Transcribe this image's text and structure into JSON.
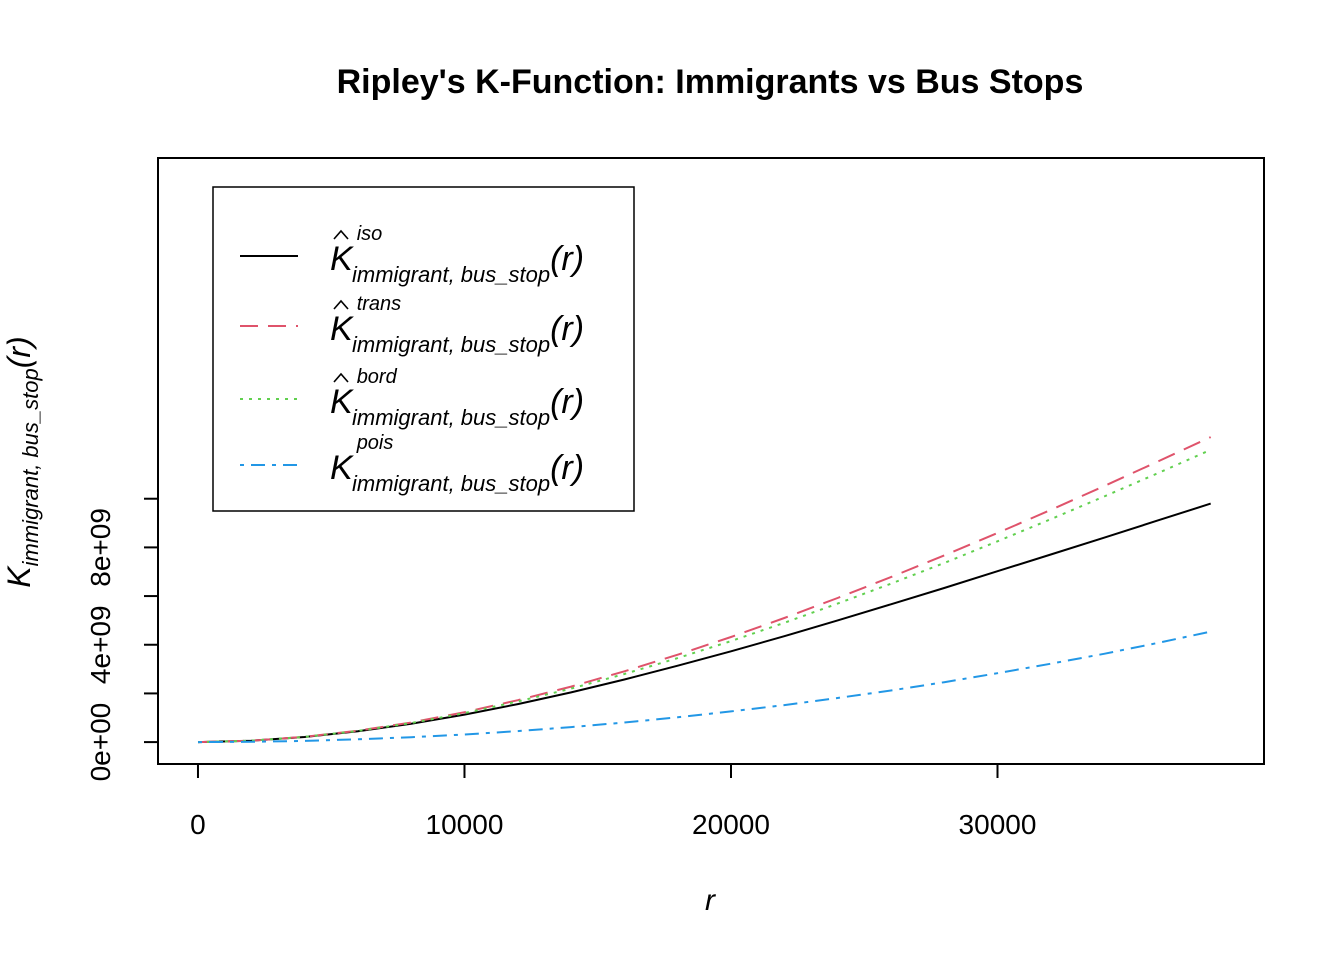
{
  "chart_data": {
    "type": "line",
    "title": "Ripley's K-Function: Immigrants vs Bus Stops",
    "xlabel": "r",
    "ylabel": {
      "base": "K",
      "subscript": "immigrant, bus_stop",
      "argument": "(r)"
    },
    "xlim": [
      -1500,
      40000
    ],
    "ylim": [
      -900000000,
      24000000000
    ],
    "x_ticks": [
      {
        "value": 0,
        "label": "0"
      },
      {
        "value": 10000,
        "label": "10000"
      },
      {
        "value": 20000,
        "label": "20000"
      },
      {
        "value": 30000,
        "label": "30000"
      }
    ],
    "y_ticks": [
      {
        "value": 0,
        "label": "0e+00"
      },
      {
        "value": 2000000000,
        "label": ""
      },
      {
        "value": 4000000000,
        "label": "4e+09"
      },
      {
        "value": 6000000000,
        "label": ""
      },
      {
        "value": 8000000000,
        "label": "8e+09"
      },
      {
        "value": 10000000000,
        "label": ""
      }
    ],
    "grid": false,
    "legend": {
      "position": "top-left",
      "entries": [
        {
          "base": "K",
          "hat": true,
          "sup": "iso",
          "sub": "immigrant, bus_stop",
          "arg": "(r)",
          "color": "#000000",
          "dash": ""
        },
        {
          "base": "K",
          "hat": true,
          "sup": "trans",
          "sub": "immigrant, bus_stop",
          "arg": "(r)",
          "color": "#DF536B",
          "dash": "18,10"
        },
        {
          "base": "K",
          "hat": true,
          "sup": "bord",
          "sub": "immigrant, bus_stop",
          "arg": "(r)",
          "color": "#61D04F",
          "dash": "3,6"
        },
        {
          "base": "K",
          "hat": false,
          "sup": "pois",
          "sub": "immigrant, bus_stop",
          "arg": "(r)",
          "color": "#2297E6",
          "dash": "4,7,14,7"
        }
      ]
    },
    "x": [
      0,
      2000,
      4000,
      6000,
      8000,
      10000,
      12000,
      14000,
      16000,
      18000,
      20000,
      22000,
      24000,
      26000,
      28000,
      30000,
      32000,
      34000,
      36000,
      38000
    ],
    "series": [
      {
        "name": "iso",
        "color": "#000000",
        "dash": "",
        "values": [
          0,
          56000000,
          209000000,
          444000000,
          756000000,
          1130000000,
          1560000000,
          2040000000,
          2570000000,
          3140000000,
          3730000000,
          4350000000,
          5000000000,
          5660000000,
          6330000000,
          7020000000,
          7710000000,
          8400000000,
          9100000000,
          9800000000
        ]
      },
      {
        "name": "trans",
        "color": "#DF536B",
        "dash": "18,10",
        "values": [
          0,
          58000000,
          216000000,
          467000000,
          806000000,
          1230000000,
          1720000000,
          2280000000,
          2910000000,
          3590000000,
          4320000000,
          5100000000,
          5920000000,
          6780000000,
          7670000000,
          8590000000,
          9540000000,
          10520000000,
          11520000000,
          12530000000
        ]
      },
      {
        "name": "bord",
        "color": "#61D04F",
        "dash": "3,6",
        "values": [
          0,
          57000000,
          213000000,
          458000000,
          786000000,
          1190000000,
          1670000000,
          2200000000,
          2800000000,
          3450000000,
          4150000000,
          4900000000,
          5690000000,
          6510000000,
          7360000000,
          8250000000,
          9160000000,
          10090000000,
          11040000000,
          12010000000
        ]
      },
      {
        "name": "pois",
        "color": "#2297E6",
        "dash": "4,7,14,7",
        "values": [
          0,
          12600000,
          50300000,
          113000000,
          201000000,
          314000000,
          452000000,
          616000000,
          804000000,
          1020000000,
          1260000000,
          1520000000,
          1810000000,
          2120000000,
          2460000000,
          2830000000,
          3220000000,
          3630000000,
          4070000000,
          4540000000
        ]
      }
    ]
  }
}
